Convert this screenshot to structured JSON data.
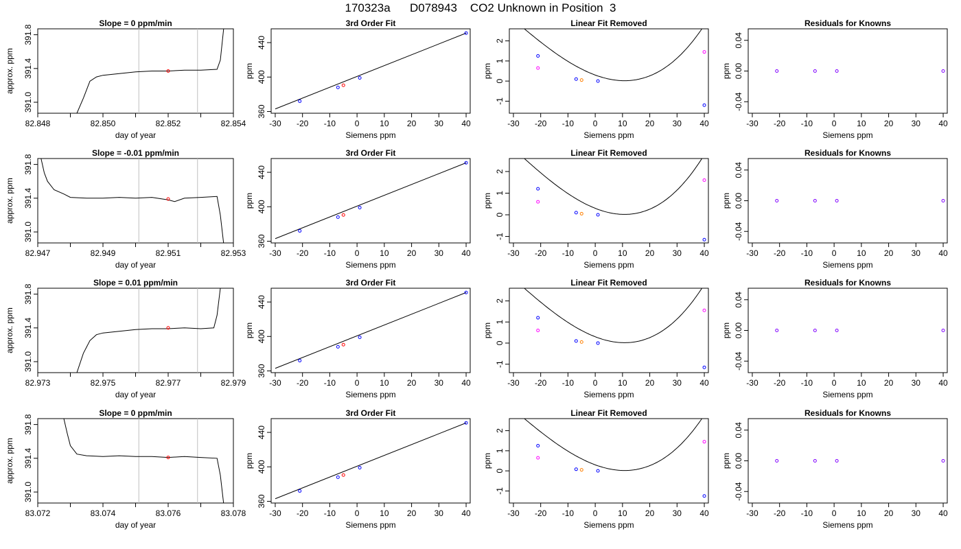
{
  "title": "170323a      D078943    CO2 Unknown in Position  3",
  "colors": {
    "line": "#000000",
    "vline": "#bebebe",
    "red": "#ff0000",
    "blue": "#0000ff",
    "orange": "#ff7f00",
    "magenta": "#ff00ff",
    "purple": "#8000ff"
  },
  "chart_data": [
    {
      "type": "line",
      "row": 1,
      "col": 1,
      "title": "Slope =  0  ppm/min",
      "xlabel": "day of year",
      "ylabel": "approx. ppm",
      "xlim": [
        82.848,
        82.854
      ],
      "ylim": [
        390.87,
        391.87
      ],
      "xticks": [
        82.848,
        82.849,
        82.85,
        82.851,
        82.852,
        82.853,
        82.854
      ],
      "xtick_labels": [
        "82.848",
        "82.850",
        "82.852",
        "82.854"
      ],
      "yticks": [
        391.0,
        391.4,
        391.8
      ],
      "ytick_labels": [
        "391.0",
        "391.4",
        "391.8"
      ],
      "vlines": [
        82.8511,
        82.8529
      ],
      "marker": {
        "x": 82.852,
        "y": 391.37
      },
      "series": [
        {
          "x": [
            82.8492,
            82.8494,
            82.8496,
            82.8498,
            82.85,
            82.8505,
            82.851,
            82.8515,
            82.852,
            82.8525,
            82.853,
            82.8535,
            82.8536,
            82.8537
          ],
          "y": [
            390.87,
            391.05,
            391.25,
            391.3,
            391.32,
            391.34,
            391.36,
            391.37,
            391.37,
            391.38,
            391.38,
            391.39,
            391.5,
            391.87
          ]
        }
      ]
    },
    {
      "type": "line",
      "row": 1,
      "col": 2,
      "title": "3rd Order Fit",
      "xlabel": "Siemens ppm",
      "ylabel": "ppm",
      "xlim": [
        -31.5,
        41.5
      ],
      "ylim": [
        358,
        456
      ],
      "xticks": [
        -30,
        -20,
        -10,
        0,
        10,
        20,
        30,
        40
      ],
      "yticks": [
        360,
        400,
        440
      ],
      "fit": {
        "x": [
          -30,
          40
        ],
        "y": [
          363,
          451
        ]
      },
      "known": {
        "x": [
          -21,
          -7,
          1,
          40
        ],
        "y": [
          372,
          388,
          399,
          451
        ]
      },
      "unknown": {
        "x": [
          -5
        ],
        "y": [
          390.5
        ]
      }
    },
    {
      "type": "scatter",
      "row": 1,
      "col": 3,
      "title": "Linear Fit Removed",
      "xlabel": "Siemens ppm",
      "ylabel": "ppm",
      "xlim": [
        -31.5,
        41.5
      ],
      "ylim": [
        -1.6,
        2.6
      ],
      "xticks": [
        -30,
        -20,
        -10,
        0,
        10,
        20,
        30,
        40
      ],
      "yticks": [
        -1,
        0,
        1,
        2
      ],
      "cubic": [
        0.3,
        -0.05,
        0.002,
        2e-05
      ],
      "known": {
        "x": [
          -21,
          -7,
          1,
          40
        ],
        "y": [
          1.25,
          0.1,
          0.0,
          -1.2
        ]
      },
      "unknown": {
        "x": [
          -5
        ],
        "y": [
          0.05
        ]
      },
      "magenta": {
        "x": [
          -21,
          40
        ],
        "y": [
          0.65,
          1.45
        ]
      }
    },
    {
      "type": "scatter",
      "row": 1,
      "col": 4,
      "title": "Residuals for Knowns",
      "xlabel": "Siemens ppm",
      "ylabel": "ppm",
      "xlim": [
        -31.5,
        41.5
      ],
      "ylim": [
        -0.055,
        0.055
      ],
      "xticks": [
        -30,
        -20,
        -10,
        0,
        10,
        20,
        30,
        40
      ],
      "yticks": [
        -0.04,
        0.0,
        0.04
      ],
      "ytick_labels": [
        "-0.04",
        "0.00",
        "0.04"
      ],
      "points": {
        "x": [
          -21,
          -7,
          1,
          40
        ],
        "y": [
          0,
          0,
          0,
          0
        ]
      }
    },
    {
      "type": "line",
      "row": 2,
      "col": 1,
      "title": "Slope =  -0.01  ppm/min",
      "xlabel": "day of year",
      "ylabel": "approx. ppm",
      "xlim": [
        82.947,
        82.953
      ],
      "ylim": [
        390.87,
        391.87
      ],
      "xticks": [
        82.947,
        82.948,
        82.949,
        82.95,
        82.951,
        82.952,
        82.953
      ],
      "xtick_labels": [
        "82.947",
        "82.949",
        "82.951",
        "82.953"
      ],
      "yticks": [
        391.0,
        391.4,
        391.8
      ],
      "ytick_labels": [
        "391.0",
        "391.4",
        "391.8"
      ],
      "vlines": [
        82.9501,
        82.9519
      ],
      "marker": {
        "x": 82.951,
        "y": 391.39
      },
      "series": [
        {
          "x": [
            82.9471,
            82.9472,
            82.9473,
            82.9475,
            82.9478,
            82.948,
            82.9485,
            82.949,
            82.9495,
            82.95,
            82.9505,
            82.951,
            82.9512,
            82.9515,
            82.952,
            82.9525,
            82.9526,
            82.9527
          ],
          "y": [
            391.87,
            391.7,
            391.6,
            391.5,
            391.45,
            391.41,
            391.4,
            391.4,
            391.41,
            391.4,
            391.41,
            391.38,
            391.36,
            391.4,
            391.41,
            391.42,
            391.2,
            390.87
          ]
        }
      ]
    },
    {
      "type": "line",
      "row": 2,
      "col": 2,
      "title": "3rd Order Fit",
      "xlabel": "Siemens ppm",
      "ylabel": "ppm",
      "xlim": [
        -31.5,
        41.5
      ],
      "ylim": [
        358,
        456
      ],
      "xticks": [
        -30,
        -20,
        -10,
        0,
        10,
        20,
        30,
        40
      ],
      "yticks": [
        360,
        400,
        440
      ],
      "fit": {
        "x": [
          -30,
          40
        ],
        "y": [
          363,
          451
        ]
      },
      "known": {
        "x": [
          -21,
          -7,
          1,
          40
        ],
        "y": [
          372,
          388,
          399,
          451
        ]
      },
      "unknown": {
        "x": [
          -5
        ],
        "y": [
          390.5
        ]
      }
    },
    {
      "type": "scatter",
      "row": 2,
      "col": 3,
      "title": "Linear Fit Removed",
      "xlabel": "Siemens ppm",
      "ylabel": "ppm",
      "xlim": [
        -31.5,
        41.5
      ],
      "ylim": [
        -1.3,
        2.6
      ],
      "xticks": [
        -30,
        -20,
        -10,
        0,
        10,
        20,
        30,
        40
      ],
      "yticks": [
        -1,
        0,
        1,
        2
      ],
      "cubic": [
        0.3,
        -0.05,
        0.002,
        2e-05
      ],
      "known": {
        "x": [
          -21,
          -7,
          1,
          40
        ],
        "y": [
          1.2,
          0.1,
          0.0,
          -1.15
        ]
      },
      "unknown": {
        "x": [
          -5
        ],
        "y": [
          0.05
        ]
      },
      "magenta": {
        "x": [
          -21,
          40
        ],
        "y": [
          0.6,
          1.6
        ]
      }
    },
    {
      "type": "scatter",
      "row": 2,
      "col": 4,
      "title": "Residuals for Knowns",
      "xlabel": "Siemens ppm",
      "ylabel": "ppm",
      "xlim": [
        -31.5,
        41.5
      ],
      "ylim": [
        -0.055,
        0.055
      ],
      "xticks": [
        -30,
        -20,
        -10,
        0,
        10,
        20,
        30,
        40
      ],
      "yticks": [
        -0.04,
        0.0,
        0.04
      ],
      "ytick_labels": [
        "-0.04",
        "0.00",
        "0.04"
      ],
      "points": {
        "x": [
          -21,
          -7,
          1,
          40
        ],
        "y": [
          0,
          0,
          0,
          0
        ]
      }
    },
    {
      "type": "line",
      "row": 3,
      "col": 1,
      "title": "Slope =  0.01  ppm/min",
      "xlabel": "day of year",
      "ylabel": "approx. ppm",
      "xlim": [
        82.973,
        82.979
      ],
      "ylim": [
        390.87,
        391.87
      ],
      "xticks": [
        82.973,
        82.974,
        82.975,
        82.976,
        82.977,
        82.978,
        82.979
      ],
      "xtick_labels": [
        "82.973",
        "82.975",
        "82.977",
        "82.979"
      ],
      "yticks": [
        391.0,
        391.4,
        391.8
      ],
      "ytick_labels": [
        "391.0",
        "391.4",
        "391.8"
      ],
      "vlines": [
        82.9761,
        82.9779
      ],
      "marker": {
        "x": 82.977,
        "y": 391.4
      },
      "series": [
        {
          "x": [
            82.9742,
            82.9744,
            82.9746,
            82.9748,
            82.975,
            82.9755,
            82.976,
            82.9765,
            82.977,
            82.9775,
            82.978,
            82.9784,
            82.9785,
            82.9786
          ],
          "y": [
            390.87,
            391.1,
            391.25,
            391.32,
            391.34,
            391.36,
            391.38,
            391.39,
            391.39,
            391.4,
            391.39,
            391.4,
            391.55,
            391.87
          ]
        }
      ]
    },
    {
      "type": "line",
      "row": 3,
      "col": 2,
      "title": "3rd Order Fit",
      "xlabel": "Siemens ppm",
      "ylabel": "ppm",
      "xlim": [
        -31.5,
        41.5
      ],
      "ylim": [
        358,
        456
      ],
      "xticks": [
        -30,
        -20,
        -10,
        0,
        10,
        20,
        30,
        40
      ],
      "yticks": [
        360,
        400,
        440
      ],
      "fit": {
        "x": [
          -30,
          40
        ],
        "y": [
          363,
          451
        ]
      },
      "known": {
        "x": [
          -21,
          -7,
          1,
          40
        ],
        "y": [
          372,
          388,
          399,
          451
        ]
      },
      "unknown": {
        "x": [
          -5
        ],
        "y": [
          390.5
        ]
      }
    },
    {
      "type": "scatter",
      "row": 3,
      "col": 3,
      "title": "Linear Fit Removed",
      "xlabel": "Siemens ppm",
      "ylabel": "ppm",
      "xlim": [
        -31.5,
        41.5
      ],
      "ylim": [
        -1.4,
        2.6
      ],
      "xticks": [
        -30,
        -20,
        -10,
        0,
        10,
        20,
        30,
        40
      ],
      "yticks": [
        -1,
        0,
        1,
        2
      ],
      "cubic": [
        0.3,
        -0.05,
        0.002,
        2e-05
      ],
      "known": {
        "x": [
          -21,
          -7,
          1,
          40
        ],
        "y": [
          1.2,
          0.1,
          0.0,
          -1.15
        ]
      },
      "unknown": {
        "x": [
          -5
        ],
        "y": [
          0.05
        ]
      },
      "magenta": {
        "x": [
          -21,
          40
        ],
        "y": [
          0.6,
          1.55
        ]
      }
    },
    {
      "type": "scatter",
      "row": 3,
      "col": 4,
      "title": "Residuals for Knowns",
      "xlabel": "Siemens ppm",
      "ylabel": "ppm",
      "xlim": [
        -31.5,
        41.5
      ],
      "ylim": [
        -0.055,
        0.055
      ],
      "xticks": [
        -30,
        -20,
        -10,
        0,
        10,
        20,
        30,
        40
      ],
      "yticks": [
        -0.04,
        0.0,
        0.04
      ],
      "ytick_labels": [
        "-0.04",
        "0.00",
        "0.04"
      ],
      "points": {
        "x": [
          -21,
          -7,
          1,
          40
        ],
        "y": [
          0,
          0,
          0,
          0
        ]
      }
    },
    {
      "type": "line",
      "row": 4,
      "col": 1,
      "title": "Slope =  0  ppm/min",
      "xlabel": "day of year",
      "ylabel": "approx. ppm",
      "xlim": [
        83.072,
        83.078
      ],
      "ylim": [
        390.87,
        391.87
      ],
      "xticks": [
        83.072,
        83.073,
        83.074,
        83.075,
        83.076,
        83.077,
        83.078
      ],
      "xtick_labels": [
        "83.072",
        "83.074",
        "83.076",
        "83.078"
      ],
      "yticks": [
        391.0,
        391.4,
        391.8
      ],
      "ytick_labels": [
        "391.0",
        "391.4",
        "391.8"
      ],
      "vlines": [
        83.0751,
        83.0769
      ],
      "marker": {
        "x": 83.076,
        "y": 391.41
      },
      "series": [
        {
          "x": [
            83.0728,
            83.0729,
            83.073,
            83.0732,
            83.0735,
            83.074,
            83.0745,
            83.075,
            83.0755,
            83.076,
            83.0765,
            83.077,
            83.0775,
            83.0776,
            83.0777
          ],
          "y": [
            391.87,
            391.7,
            391.55,
            391.45,
            391.43,
            391.42,
            391.43,
            391.42,
            391.42,
            391.41,
            391.42,
            391.41,
            391.4,
            391.2,
            390.87
          ]
        }
      ]
    },
    {
      "type": "line",
      "row": 4,
      "col": 2,
      "title": "3rd Order Fit",
      "xlabel": "Siemens ppm",
      "ylabel": "ppm",
      "xlim": [
        -31.5,
        41.5
      ],
      "ylim": [
        358,
        456
      ],
      "xticks": [
        -30,
        -20,
        -10,
        0,
        10,
        20,
        30,
        40
      ],
      "yticks": [
        360,
        400,
        440
      ],
      "fit": {
        "x": [
          -30,
          40
        ],
        "y": [
          363,
          451
        ]
      },
      "known": {
        "x": [
          -21,
          -7,
          1,
          40
        ],
        "y": [
          372,
          388,
          399,
          451
        ]
      },
      "unknown": {
        "x": [
          -5
        ],
        "y": [
          390.5
        ]
      }
    },
    {
      "type": "scatter",
      "row": 4,
      "col": 3,
      "title": "Linear Fit Removed",
      "xlabel": "Siemens ppm",
      "ylabel": "ppm",
      "xlim": [
        -31.5,
        41.5
      ],
      "ylim": [
        -1.6,
        2.6
      ],
      "xticks": [
        -30,
        -20,
        -10,
        0,
        10,
        20,
        30,
        40
      ],
      "yticks": [
        -1,
        0,
        1,
        2
      ],
      "cubic": [
        0.3,
        -0.05,
        0.002,
        2e-05
      ],
      "known": {
        "x": [
          -21,
          -7,
          1,
          40
        ],
        "y": [
          1.25,
          0.08,
          0.0,
          -1.25
        ]
      },
      "unknown": {
        "x": [
          -5
        ],
        "y": [
          0.05
        ]
      },
      "magenta": {
        "x": [
          -21,
          40
        ],
        "y": [
          0.65,
          1.45
        ]
      }
    },
    {
      "type": "scatter",
      "row": 4,
      "col": 4,
      "title": "Residuals for Knowns",
      "xlabel": "Siemens ppm",
      "ylabel": "ppm",
      "xlim": [
        -31.5,
        41.5
      ],
      "ylim": [
        -0.055,
        0.055
      ],
      "xticks": [
        -30,
        -20,
        -10,
        0,
        10,
        20,
        30,
        40
      ],
      "yticks": [
        -0.04,
        0.0,
        0.04
      ],
      "ytick_labels": [
        "-0.04",
        "0.00",
        "0.04"
      ],
      "points": {
        "x": [
          -21,
          -7,
          1,
          40
        ],
        "y": [
          0,
          0,
          0,
          0
        ]
      }
    }
  ]
}
